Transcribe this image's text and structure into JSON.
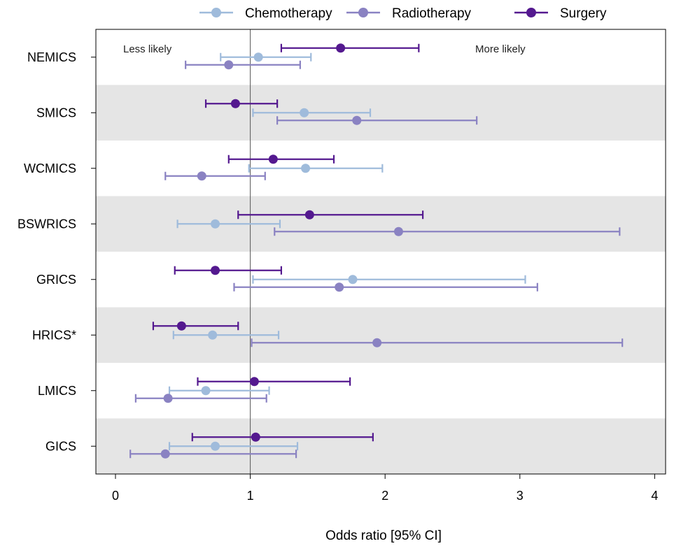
{
  "chart_data": {
    "type": "forest",
    "xlabel": "Odds ratio [95% CI]",
    "xlim": [
      -0.07,
      4.07
    ],
    "xticks": [
      0,
      1,
      2,
      3,
      4
    ],
    "xtick_labels": [
      "0",
      "1",
      "2",
      "3",
      "4"
    ],
    "reference_line": 1,
    "annotations": {
      "left": "Less likely",
      "right": "More likely"
    },
    "legend_position": "top",
    "categories": [
      "NEMICS",
      "SMICS",
      "WCMICS",
      "BSWRICS",
      "GRICS",
      "HRICS*",
      "LMICS",
      "GICS"
    ],
    "series": [
      {
        "name": "Chemotherapy",
        "color": "#9fbbdb",
        "values": [
          1.06,
          1.4,
          1.41,
          0.74,
          1.76,
          0.72,
          0.67,
          0.74
        ],
        "lower": [
          0.78,
          1.02,
          0.99,
          0.46,
          1.02,
          0.43,
          0.4,
          0.4
        ],
        "upper": [
          1.45,
          1.89,
          1.98,
          1.22,
          3.04,
          1.21,
          1.14,
          1.35
        ]
      },
      {
        "name": "Radiotherapy",
        "color": "#8a82c2",
        "values": [
          0.84,
          1.79,
          0.64,
          2.1,
          1.66,
          1.94,
          0.39,
          0.37
        ],
        "lower": [
          0.52,
          1.2,
          0.37,
          1.18,
          0.88,
          1.01,
          0.15,
          0.11
        ],
        "upper": [
          1.37,
          2.68,
          1.11,
          3.74,
          3.13,
          3.76,
          1.12,
          1.34
        ]
      },
      {
        "name": "Surgery",
        "color": "#54198f",
        "values": [
          1.67,
          0.89,
          1.17,
          1.44,
          0.74,
          0.49,
          1.03,
          1.04
        ],
        "lower": [
          1.23,
          0.67,
          0.84,
          0.91,
          0.44,
          0.28,
          0.61,
          0.57
        ],
        "upper": [
          2.25,
          1.2,
          1.62,
          2.28,
          1.23,
          0.91,
          1.74,
          1.91
        ]
      }
    ],
    "colors": {
      "band": "#e5e5e5",
      "axis": "#000000",
      "reference": "#555555"
    }
  }
}
